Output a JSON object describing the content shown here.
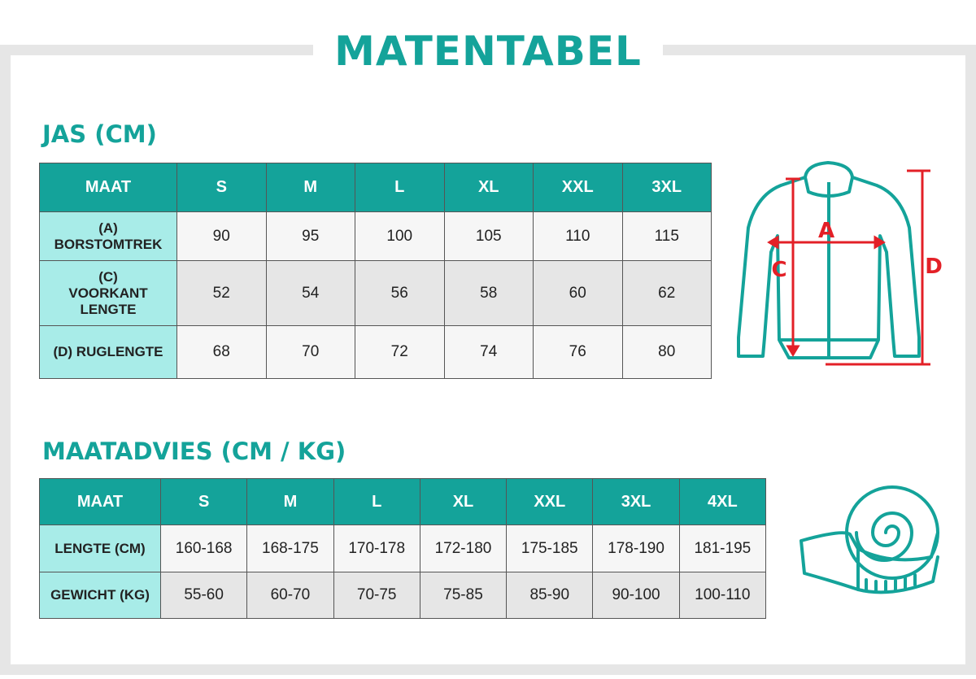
{
  "title": "MATENTABEL",
  "jacket": {
    "title": "JAS (CM)",
    "header": [
      "MAAT",
      "S",
      "M",
      "L",
      "XL",
      "XXL",
      "3XL"
    ],
    "rows": [
      [
        "(A) BORSTOMTREK",
        90,
        95,
        100,
        105,
        110,
        115
      ],
      [
        "(C) VOORKANT LENGTE",
        52,
        54,
        56,
        58,
        60,
        62
      ],
      [
        "(D) RUGLENGTE",
        68,
        70,
        72,
        74,
        76,
        80
      ]
    ]
  },
  "diagram": {
    "labels": [
      "A",
      "C",
      "D"
    ]
  },
  "advice": {
    "title": "MAATADVIES (CM / KG)",
    "header": [
      "MAAT",
      "S",
      "M",
      "L",
      "XL",
      "XXL",
      "3XL",
      "4XL"
    ],
    "rows": [
      [
        "LENGTE (CM)",
        "160-168",
        "168-175",
        "170-178",
        "172-180",
        "175-185",
        "178-190",
        "181-195"
      ],
      [
        "GEWICHT (KG)",
        "55-60",
        "60-70",
        "70-75",
        "75-85",
        "85-90",
        "90-100",
        "100-110"
      ]
    ]
  }
}
